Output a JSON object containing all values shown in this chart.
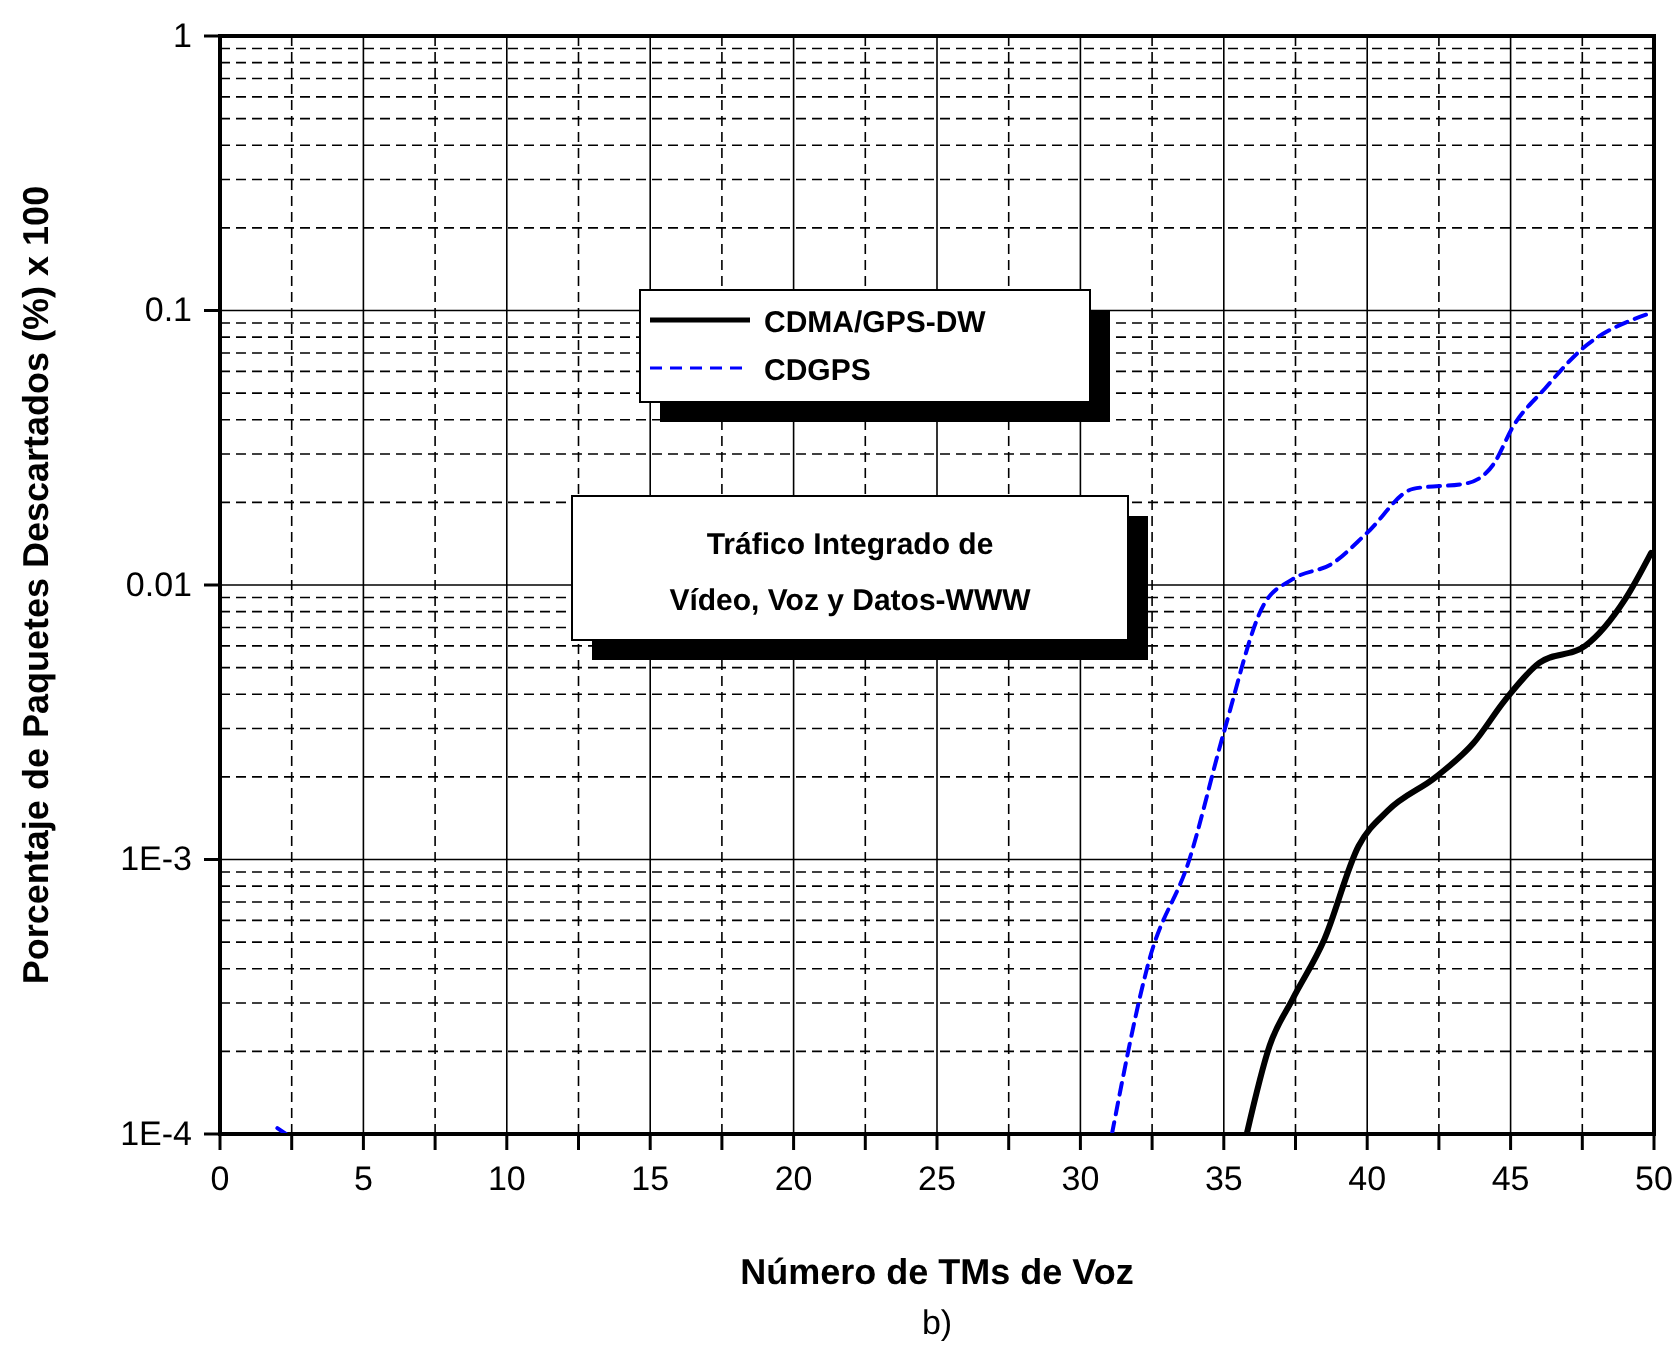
{
  "chart_data": {
    "type": "line",
    "xlabel": "Número de TMs de Voz",
    "ylabel": "Porcentaje de Paquetes Descartados (%) x 100",
    "log": true,
    "grid": true,
    "legend": "center",
    "xlim": [
      0,
      50
    ],
    "xticks": [
      0,
      {
        "value": 2.5,
        "label": null
      },
      5,
      {
        "value": 7.5,
        "label": null
      },
      10,
      {
        "value": 12.5,
        "label": null
      },
      15,
      {
        "value": 17.5,
        "label": null
      },
      20,
      {
        "value": 22.5,
        "label": null
      },
      25,
      {
        "value": 27.5,
        "label": null
      },
      30,
      {
        "value": 32.5,
        "label": null
      },
      35,
      {
        "value": 37.5,
        "label": null
      },
      40,
      {
        "value": 42.5,
        "label": null
      },
      45,
      {
        "value": 47.5,
        "label": null
      },
      50
    ],
    "ylim": [
      0.0001,
      1
    ],
    "yticks": [
      {
        "value": 0.0001,
        "label": "1E-4"
      },
      {
        "value": 0.001,
        "label": "1E-3"
      },
      0.01,
      0.1,
      1
    ],
    "series": [
      {
        "name": "CDMA/GPS-DW",
        "color": "#000000",
        "line_style": "solid",
        "x": [
          35.8,
          36.6,
          37.4,
          38.5,
          39.7,
          40.7,
          42.4,
          43.7,
          44.8,
          46.0,
          47.6,
          49.0,
          49.9
        ],
        "values": [
          0.0001,
          0.00021,
          0.00031,
          0.00051,
          0.00112,
          0.0015,
          0.002,
          0.00265,
          0.0038,
          0.0052,
          0.006,
          0.0089,
          0.0131
        ]
      },
      {
        "name": "CDGPS",
        "color": "#0000ff",
        "line_style": "dashed",
        "x": [
          2.0,
          2.3,
          null,
          31.1,
          32.4,
          33.8,
          35.0,
          36.4,
          37.4,
          38.8,
          40.0,
          41.6,
          43.5,
          44.4,
          45.1,
          46.2,
          47.4,
          49.9
        ],
        "values": [
          0.000105,
          0.0001,
          null,
          0.0001,
          0.00043,
          0.001,
          0.0029,
          0.0085,
          0.0105,
          0.012,
          0.0155,
          0.0224,
          0.0235,
          0.0275,
          0.038,
          0.052,
          0.071,
          0.098
        ]
      }
    ],
    "annotations": [
      "Tráfico Integrado de Vídeo, Voz y Datos-WWW",
      "b)"
    ]
  }
}
